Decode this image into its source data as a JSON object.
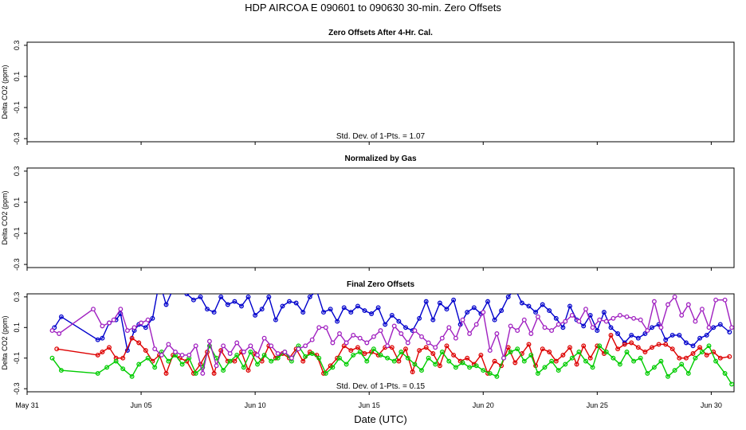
{
  "title": "HDP    AIRCOA E    090601 to 090630   30-min. Zero Offsets",
  "x_axis_label": "Date (UTC)",
  "x_tick_labels": [
    "May 31",
    "Jun 05",
    "Jun 10",
    "Jun 15",
    "Jun 20",
    "Jun 25",
    "Jun 30"
  ],
  "colors": {
    "blue": "#0000cc",
    "red": "#dd0000",
    "green": "#00cc00",
    "purple": "#a020c0",
    "axis": "#000000"
  },
  "chart_data": [
    {
      "type": "line",
      "title": "Zero Offsets After 4-Hr. Cal.",
      "ylabel": "Delta CO2 (ppm)",
      "ylim": [
        -0.32,
        0.32
      ],
      "yticks": [
        "-0.3",
        "-0.1",
        "0.1",
        "0.3"
      ],
      "xlim": [
        "2009-05-31",
        "2009-07-01"
      ],
      "annotation": "Std. Dev. of 1-Pts. =  1.07",
      "series": []
    },
    {
      "type": "line",
      "title": "Normalized by Gas",
      "ylabel": "Delta CO2 (ppm)",
      "ylim": [
        -0.32,
        0.32
      ],
      "yticks": [
        "-0.3",
        "-0.1",
        "0.1",
        "0.3"
      ],
      "xlim": [
        "2009-05-31",
        "2009-07-01"
      ],
      "annotation": "",
      "series": []
    },
    {
      "type": "line",
      "title": "Final Zero Offsets",
      "ylabel": "Delta CO2 (ppm)",
      "ylim": [
        -0.32,
        0.32
      ],
      "yticks": [
        "-0.3",
        "-0.1",
        "0.1",
        "0.3"
      ],
      "xlim": [
        "2009-05-31",
        "2009-07-01"
      ],
      "annotation": "Std. Dev. of 1-Pts. =  0.15",
      "series": [
        {
          "color": "#0000cc",
          "x": [
            1.2,
            1.5,
            3.1,
            3.3,
            3.6,
            3.9,
            4.1,
            4.4,
            4.7,
            4.9,
            5.2,
            5.5,
            5.8,
            6.1,
            6.4,
            6.7,
            7.0,
            7.3,
            7.6,
            7.9,
            8.2,
            8.5,
            8.8,
            9.1,
            9.4,
            9.7,
            10.0,
            10.3,
            10.6,
            10.9,
            11.2,
            11.5,
            11.8,
            12.1,
            12.4,
            12.7,
            13.0,
            13.3,
            13.6,
            13.9,
            14.2,
            14.5,
            14.8,
            15.1,
            15.4,
            15.7,
            16.0,
            16.3,
            16.6,
            16.9,
            17.2,
            17.5,
            17.8,
            18.1,
            18.4,
            18.7,
            19.0,
            19.3,
            19.6,
            19.9,
            20.2,
            20.5,
            20.8,
            21.1,
            21.4,
            21.7,
            22.0,
            22.3,
            22.6,
            22.9,
            23.2,
            23.5,
            23.8,
            24.1,
            24.4,
            24.7,
            25.0,
            25.3,
            25.6,
            25.9,
            26.2,
            26.5,
            26.8,
            27.1,
            27.4,
            27.7,
            28.0,
            28.3,
            28.6,
            28.9,
            29.2,
            29.5,
            29.8,
            30.1,
            30.4,
            30.8
          ],
          "y": [
            0.1,
            0.17,
            0.02,
            0.03,
            0.13,
            0.15,
            0.19,
            -0.05,
            0.08,
            0.12,
            0.1,
            0.16,
            0.4,
            0.25,
            0.35,
            0.38,
            0.32,
            0.28,
            0.3,
            0.22,
            0.2,
            0.3,
            0.25,
            0.27,
            0.24,
            0.3,
            0.18,
            0.22,
            0.3,
            0.15,
            0.24,
            0.27,
            0.26,
            0.2,
            0.3,
            0.34,
            0.2,
            0.22,
            0.14,
            0.23,
            0.2,
            0.24,
            0.21,
            0.19,
            0.23,
            0.12,
            0.18,
            0.14,
            0.1,
            0.08,
            0.16,
            0.27,
            0.15,
            0.26,
            0.22,
            0.28,
            0.12,
            0.2,
            0.23,
            0.19,
            0.27,
            0.15,
            0.21,
            0.3,
            0.35,
            0.26,
            0.24,
            0.2,
            0.25,
            0.21,
            0.16,
            0.1,
            0.24,
            0.15,
            0.11,
            0.18,
            0.08,
            0.2,
            0.1,
            0.06,
            0.0,
            0.05,
            0.03,
            0.06,
            0.1,
            0.12,
            0.02,
            0.05,
            0.05,
            0.0,
            -0.02,
            0.03,
            0.05,
            0.1,
            0.12,
            0.07
          ],
          "marker": "circle"
        },
        {
          "color": "#dd0000",
          "x": [
            1.3,
            3.1,
            3.3,
            3.6,
            3.9,
            4.2,
            4.6,
            4.9,
            5.2,
            5.5,
            5.8,
            6.1,
            6.4,
            6.7,
            7.0,
            7.3,
            7.6,
            7.9,
            8.2,
            8.5,
            8.8,
            9.1,
            9.4,
            9.7,
            10.0,
            10.3,
            10.6,
            10.9,
            11.2,
            11.5,
            11.8,
            12.1,
            12.4,
            12.7,
            13.0,
            13.3,
            13.6,
            13.9,
            14.2,
            14.5,
            14.8,
            15.1,
            15.4,
            15.7,
            16.0,
            16.3,
            16.6,
            16.9,
            17.2,
            17.5,
            17.8,
            18.1,
            18.4,
            18.7,
            19.0,
            19.3,
            19.6,
            19.9,
            20.2,
            20.5,
            20.8,
            21.1,
            21.4,
            21.7,
            22.0,
            22.3,
            22.6,
            22.9,
            23.2,
            23.5,
            23.8,
            24.1,
            24.4,
            24.7,
            25.0,
            25.3,
            25.6,
            25.9,
            26.2,
            26.5,
            26.8,
            27.1,
            27.4,
            27.7,
            28.0,
            28.3,
            28.6,
            28.9,
            29.2,
            29.5,
            29.8,
            30.1,
            30.4,
            30.8
          ],
          "y": [
            -0.04,
            -0.08,
            -0.06,
            -0.03,
            -0.1,
            -0.1,
            0.03,
            0.0,
            -0.05,
            -0.12,
            -0.08,
            -0.2,
            -0.08,
            -0.1,
            -0.12,
            -0.2,
            -0.14,
            -0.06,
            -0.2,
            -0.05,
            -0.12,
            -0.12,
            -0.06,
            -0.18,
            -0.07,
            -0.12,
            -0.02,
            -0.1,
            -0.07,
            -0.1,
            -0.04,
            -0.12,
            -0.06,
            -0.08,
            -0.2,
            -0.15,
            -0.1,
            -0.02,
            -0.05,
            -0.03,
            -0.07,
            -0.06,
            -0.08,
            -0.03,
            -0.03,
            -0.12,
            -0.04,
            -0.19,
            -0.05,
            -0.03,
            -0.07,
            -0.15,
            -0.02,
            -0.08,
            -0.12,
            -0.1,
            -0.14,
            -0.08,
            -0.2,
            -0.12,
            -0.15,
            -0.03,
            -0.13,
            -0.07,
            -0.01,
            -0.15,
            -0.04,
            -0.06,
            -0.12,
            -0.08,
            -0.03,
            -0.14,
            -0.02,
            -0.1,
            -0.02,
            -0.07,
            0.05,
            -0.04,
            -0.01,
            0.0,
            -0.03,
            -0.06,
            -0.03,
            -0.01,
            -0.01,
            -0.04,
            -0.1,
            -0.1,
            -0.07,
            -0.03,
            -0.08,
            -0.06,
            -0.1,
            -0.09
          ],
          "marker": "circle"
        },
        {
          "color": "#00cc00",
          "x": [
            1.1,
            1.5,
            3.1,
            3.5,
            3.9,
            4.2,
            4.6,
            4.9,
            5.3,
            5.6,
            5.9,
            6.2,
            6.5,
            6.8,
            7.1,
            7.4,
            7.7,
            8.0,
            8.3,
            8.6,
            8.9,
            9.2,
            9.5,
            9.8,
            10.1,
            10.4,
            10.7,
            11.0,
            11.3,
            11.6,
            11.9,
            12.2,
            12.5,
            12.8,
            13.1,
            13.4,
            13.7,
            14.0,
            14.3,
            14.6,
            14.9,
            15.2,
            15.5,
            15.8,
            16.1,
            16.4,
            16.7,
            17.0,
            17.3,
            17.6,
            17.9,
            18.2,
            18.5,
            18.8,
            19.1,
            19.4,
            19.7,
            20.0,
            20.3,
            20.6,
            20.9,
            21.2,
            21.5,
            21.8,
            22.1,
            22.4,
            22.7,
            23.0,
            23.3,
            23.6,
            23.9,
            24.2,
            24.5,
            24.8,
            25.1,
            25.4,
            25.7,
            26.0,
            26.3,
            26.6,
            26.9,
            27.2,
            27.5,
            27.8,
            28.1,
            28.4,
            28.7,
            29.0,
            29.3,
            29.6,
            29.9,
            30.2,
            30.6,
            30.9
          ],
          "y": [
            -0.1,
            -0.18,
            -0.2,
            -0.16,
            -0.12,
            -0.17,
            -0.22,
            -0.14,
            -0.1,
            -0.16,
            -0.06,
            -0.12,
            -0.08,
            -0.14,
            -0.1,
            -0.2,
            -0.16,
            -0.02,
            -0.1,
            -0.18,
            -0.12,
            -0.08,
            -0.16,
            -0.06,
            -0.14,
            -0.08,
            -0.12,
            -0.1,
            -0.06,
            -0.12,
            -0.02,
            -0.09,
            -0.07,
            -0.1,
            -0.2,
            -0.16,
            -0.1,
            -0.14,
            -0.08,
            -0.06,
            -0.12,
            -0.04,
            -0.08,
            -0.1,
            -0.12,
            -0.06,
            -0.1,
            -0.14,
            -0.18,
            -0.1,
            -0.14,
            -0.06,
            -0.12,
            -0.16,
            -0.13,
            -0.16,
            -0.15,
            -0.18,
            -0.2,
            -0.22,
            -0.1,
            -0.06,
            -0.04,
            -0.12,
            -0.08,
            -0.2,
            -0.16,
            -0.12,
            -0.18,
            -0.14,
            -0.1,
            -0.06,
            -0.12,
            -0.16,
            -0.02,
            -0.06,
            -0.1,
            -0.14,
            -0.06,
            -0.12,
            -0.1,
            -0.2,
            -0.16,
            -0.12,
            -0.22,
            -0.18,
            -0.14,
            -0.2,
            -0.1,
            -0.06,
            -0.02,
            -0.12,
            -0.2,
            -0.27
          ],
          "marker": "circle"
        },
        {
          "color": "#a020c0",
          "x": [
            1.1,
            1.4,
            2.9,
            3.3,
            3.6,
            3.8,
            4.1,
            4.4,
            4.7,
            5.0,
            5.3,
            5.6,
            5.9,
            6.2,
            6.5,
            6.8,
            7.1,
            7.4,
            7.7,
            8.0,
            8.3,
            8.6,
            8.9,
            9.2,
            9.5,
            9.8,
            10.1,
            10.4,
            10.7,
            11.0,
            11.3,
            11.6,
            11.9,
            12.2,
            12.5,
            12.8,
            13.1,
            13.4,
            13.7,
            14.0,
            14.3,
            14.6,
            14.9,
            15.2,
            15.5,
            15.8,
            16.1,
            16.4,
            16.7,
            17.0,
            17.3,
            17.6,
            17.9,
            18.2,
            18.5,
            18.8,
            19.1,
            19.4,
            19.7,
            20.0,
            20.3,
            20.6,
            20.9,
            21.2,
            21.5,
            21.8,
            22.1,
            22.4,
            22.7,
            23.0,
            23.3,
            23.6,
            23.9,
            24.2,
            24.5,
            24.8,
            25.1,
            25.4,
            25.7,
            26.0,
            26.3,
            26.6,
            26.9,
            27.2,
            27.5,
            27.8,
            28.1,
            28.4,
            28.7,
            29.0,
            29.3,
            29.6,
            29.9,
            30.2,
            30.6,
            30.9
          ],
          "y": [
            0.08,
            0.06,
            0.22,
            0.11,
            0.13,
            0.15,
            0.22,
            0.08,
            0.1,
            0.13,
            0.15,
            -0.04,
            -0.08,
            -0.01,
            -0.06,
            -0.08,
            -0.08,
            -0.02,
            -0.2,
            0.01,
            -0.15,
            -0.02,
            -0.07,
            0.0,
            -0.06,
            -0.02,
            -0.08,
            0.03,
            -0.02,
            -0.07,
            -0.06,
            -0.1,
            -0.04,
            -0.02,
            0.02,
            0.1,
            0.1,
            0.0,
            0.06,
            0.0,
            0.05,
            0.03,
            0.0,
            0.04,
            0.08,
            -0.02,
            0.11,
            0.06,
            0.0,
            0.08,
            0.04,
            0.0,
            -0.03,
            0.03,
            0.1,
            0.03,
            0.15,
            0.06,
            0.12,
            0.2,
            -0.05,
            0.06,
            -0.1,
            0.11,
            0.08,
            0.15,
            0.06,
            0.17,
            0.1,
            0.08,
            0.12,
            0.14,
            0.18,
            0.14,
            0.22,
            0.1,
            0.15,
            0.14,
            0.16,
            0.18,
            0.17,
            0.16,
            0.15,
            0.08,
            0.27,
            0.1,
            0.25,
            0.3,
            0.18,
            0.25,
            0.14,
            0.22,
            0.1,
            0.28,
            0.28,
            0.1
          ],
          "marker": "cross"
        }
      ]
    }
  ]
}
